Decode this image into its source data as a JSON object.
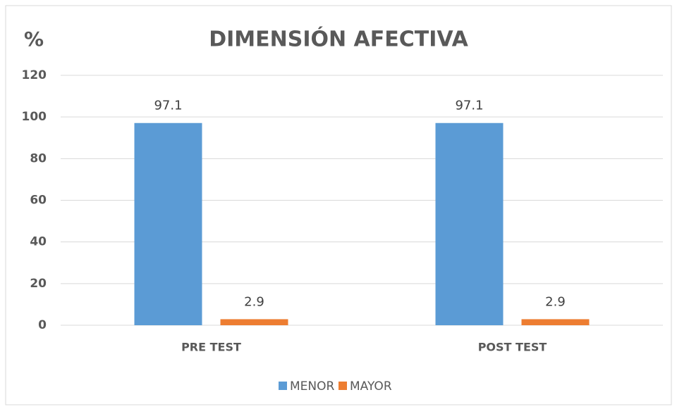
{
  "chart_data": {
    "type": "bar",
    "title": "DIMENSIÓN AFECTIVA",
    "y_label": "%",
    "categories": [
      "PRE TEST",
      "POST TEST"
    ],
    "series": [
      {
        "name": "MENOR",
        "color": "#5b9bd5",
        "values": [
          97.1,
          97.1
        ]
      },
      {
        "name": "MAYOR",
        "color": "#ed7d31",
        "values": [
          2.9,
          2.9
        ]
      }
    ],
    "ylim": [
      0,
      120
    ],
    "yticks": [
      0,
      20,
      40,
      60,
      80,
      100,
      120
    ],
    "grid": true,
    "legend": "bottom"
  }
}
